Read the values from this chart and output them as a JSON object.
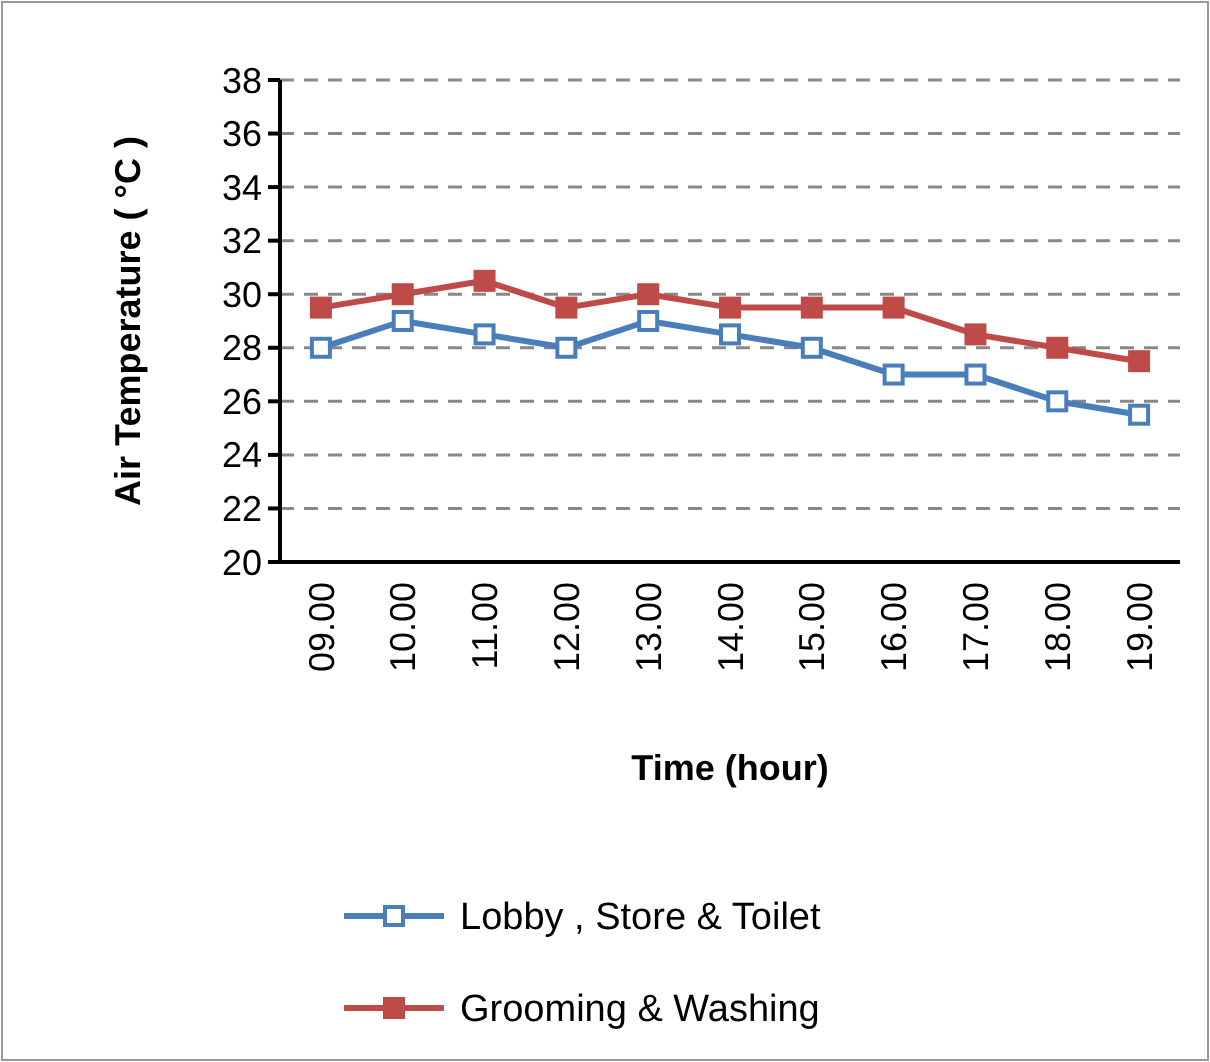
{
  "chart_data": {
    "type": "line",
    "xlabel": "Time (hour)",
    "ylabel": "Air Temperature ( °C )",
    "categories": [
      "09.00",
      "10.00",
      "11.00",
      "12.00",
      "13.00",
      "14.00",
      "15.00",
      "16.00",
      "17.00",
      "18.00",
      "19.00"
    ],
    "series": [
      {
        "name": "Lobby , Store & Toilet",
        "color": "#4a7ebb",
        "marker": "square-open",
        "values": [
          28,
          29,
          28.5,
          28,
          29,
          28.5,
          28,
          27,
          27,
          26,
          25.5
        ]
      },
      {
        "name": "Grooming & Washing",
        "color": "#be4b48",
        "marker": "square",
        "values": [
          29.5,
          30,
          30.5,
          29.5,
          30,
          29.5,
          29.5,
          29.5,
          28.5,
          28,
          27.5
        ]
      }
    ],
    "ylim": [
      20,
      38
    ],
    "yticks": [
      20,
      22,
      24,
      26,
      28,
      30,
      32,
      34,
      36,
      38
    ],
    "grid": "y",
    "legend": "bottom",
    "line_style": "solid"
  }
}
